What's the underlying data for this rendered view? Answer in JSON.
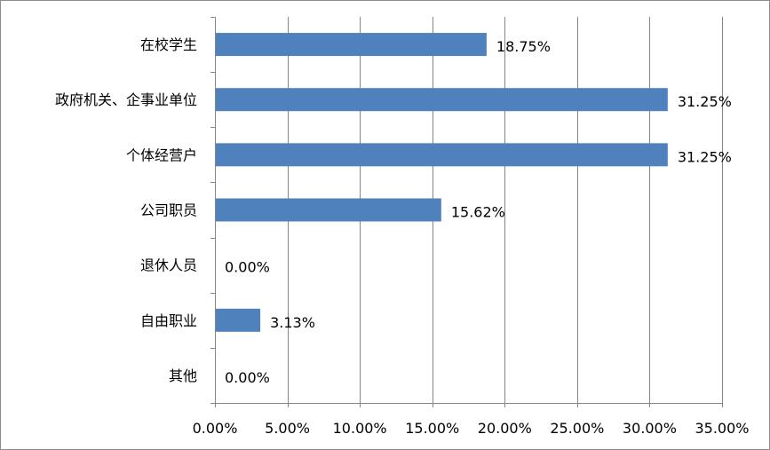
{
  "chart_data": {
    "type": "bar",
    "orientation": "horizontal",
    "categories": [
      "在校学生",
      "政府机关、企事业单位",
      "个体经营户",
      "公司职员",
      "退休人员",
      "自由职业",
      "其他"
    ],
    "values": [
      18.75,
      31.25,
      31.25,
      15.62,
      0.0,
      3.13,
      0.0
    ],
    "value_labels": [
      "18.75%",
      "31.25%",
      "31.25%",
      "15.62%",
      "0.00%",
      "3.13%",
      "0.00%"
    ],
    "xlim": [
      0,
      35
    ],
    "x_ticks": [
      0,
      5,
      10,
      15,
      20,
      25,
      30,
      35
    ],
    "x_tick_labels": [
      "0.00%",
      "5.00%",
      "10.00%",
      "15.00%",
      "20.00%",
      "25.00%",
      "30.00%",
      "35.00%"
    ],
    "grid": "vertical",
    "legend": "none",
    "bar_color": "#4f81bd",
    "grid_color": "#868686"
  }
}
